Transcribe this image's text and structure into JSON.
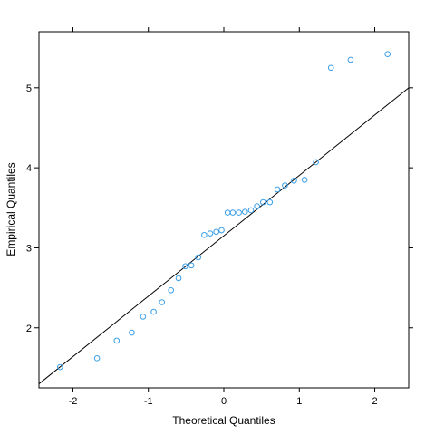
{
  "chart_data": {
    "type": "scatter",
    "title": "",
    "xlabel": "Theoretical Quantiles",
    "ylabel": "Empirical Quantiles",
    "xlim": [
      -2.45,
      2.45
    ],
    "ylim": [
      1.25,
      5.7
    ],
    "x_ticks": [
      -2,
      -1,
      0,
      1,
      2
    ],
    "x_tick_labels": [
      "-2",
      "-1",
      "0",
      "1",
      "2"
    ],
    "y_ticks": [
      2,
      3,
      4,
      5
    ],
    "y_tick_labels": [
      "2",
      "3",
      "4",
      "5"
    ],
    "grid": false,
    "point_color": "#3a9ee8",
    "line_color": "#000000",
    "reference_line": {
      "intercept": 3.15,
      "slope": 0.755
    },
    "points": [
      {
        "x": -2.17,
        "y": 1.51
      },
      {
        "x": -1.68,
        "y": 1.62
      },
      {
        "x": -1.42,
        "y": 1.84
      },
      {
        "x": -1.22,
        "y": 1.94
      },
      {
        "x": -1.07,
        "y": 2.14
      },
      {
        "x": -0.93,
        "y": 2.2
      },
      {
        "x": -0.82,
        "y": 2.32
      },
      {
        "x": -0.7,
        "y": 2.47
      },
      {
        "x": -0.6,
        "y": 2.62
      },
      {
        "x": -0.51,
        "y": 2.77
      },
      {
        "x": -0.43,
        "y": 2.78
      },
      {
        "x": -0.34,
        "y": 2.88
      },
      {
        "x": -0.26,
        "y": 3.16
      },
      {
        "x": -0.18,
        "y": 3.18
      },
      {
        "x": -0.1,
        "y": 3.2
      },
      {
        "x": -0.03,
        "y": 3.22
      },
      {
        "x": 0.05,
        "y": 3.44
      },
      {
        "x": 0.12,
        "y": 3.44
      },
      {
        "x": 0.2,
        "y": 3.44
      },
      {
        "x": 0.28,
        "y": 3.45
      },
      {
        "x": 0.36,
        "y": 3.47
      },
      {
        "x": 0.44,
        "y": 3.52
      },
      {
        "x": 0.52,
        "y": 3.57
      },
      {
        "x": 0.61,
        "y": 3.57
      },
      {
        "x": 0.71,
        "y": 3.73
      },
      {
        "x": 0.81,
        "y": 3.78
      },
      {
        "x": 0.93,
        "y": 3.84
      },
      {
        "x": 1.07,
        "y": 3.85
      },
      {
        "x": 1.22,
        "y": 4.07
      },
      {
        "x": 1.42,
        "y": 5.25
      },
      {
        "x": 1.68,
        "y": 5.35
      },
      {
        "x": 2.17,
        "y": 5.42
      }
    ]
  }
}
